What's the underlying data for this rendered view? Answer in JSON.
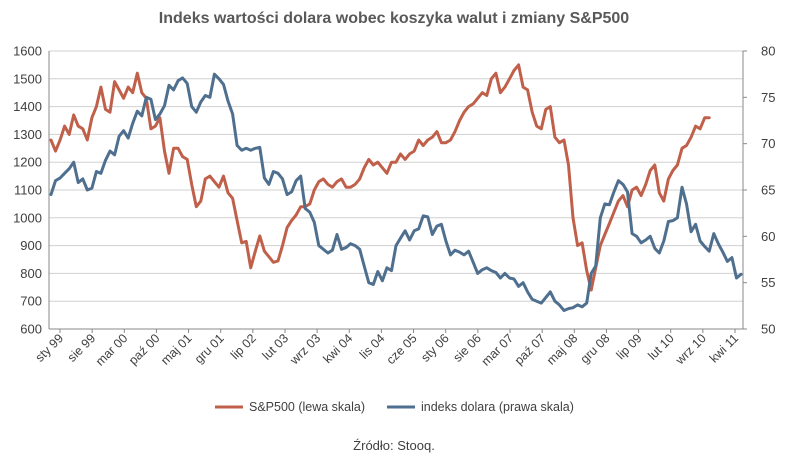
{
  "chart_data": {
    "type": "line",
    "title": "Indeks wartości dolara wobec koszyka walut i zmiany S&P500",
    "source": "Źródło: Stooq.",
    "x_tick_labels": [
      "sty 99",
      "sie 99",
      "mar 00",
      "paź 00",
      "maj 01",
      "gru 01",
      "lip 02",
      "lut 03",
      "wrz 03",
      "kwi 04",
      "lis 04",
      "cze 05",
      "sty 06",
      "sie 06",
      "mar 07",
      "paź 07",
      "maj 08",
      "gru 08",
      "lip 09",
      "lut 10",
      "wrz 10",
      "kwi 11"
    ],
    "y_left": {
      "ticks": [
        "600",
        "700",
        "800",
        "900",
        "1000",
        "1100",
        "1200",
        "1300",
        "1400",
        "1500",
        "1600"
      ],
      "range": [
        600,
        1600
      ]
    },
    "y_right": {
      "ticks": [
        "50",
        "55",
        "60",
        "65",
        "70",
        "75",
        "80"
      ],
      "range": [
        50,
        80
      ]
    },
    "grid": "horizontal",
    "legend_position": "bottom",
    "colors": {
      "sp500": "#c0604a",
      "dollar": "#4f6f8f",
      "grid": "#d0d0d0",
      "axis": "#888888"
    },
    "series": [
      {
        "name": "S&P500 (lewa skala)",
        "axis": "left",
        "color": "#c0604a",
        "points": [
          [
            0,
            1280
          ],
          [
            1,
            1240
          ],
          [
            2,
            1280
          ],
          [
            3,
            1330
          ],
          [
            4,
            1300
          ],
          [
            5,
            1370
          ],
          [
            6,
            1330
          ],
          [
            7,
            1320
          ],
          [
            8,
            1280
          ],
          [
            9,
            1360
          ],
          [
            10,
            1400
          ],
          [
            11,
            1470
          ],
          [
            12,
            1390
          ],
          [
            13,
            1380
          ],
          [
            14,
            1490
          ],
          [
            15,
            1460
          ],
          [
            16,
            1430
          ],
          [
            17,
            1470
          ],
          [
            18,
            1450
          ],
          [
            19,
            1520
          ],
          [
            20,
            1450
          ],
          [
            21,
            1430
          ],
          [
            22,
            1320
          ],
          [
            23,
            1330
          ],
          [
            24,
            1360
          ],
          [
            25,
            1240
          ],
          [
            26,
            1160
          ],
          [
            27,
            1250
          ],
          [
            28,
            1250
          ],
          [
            29,
            1220
          ],
          [
            30,
            1210
          ],
          [
            31,
            1120
          ],
          [
            32,
            1040
          ],
          [
            33,
            1060
          ],
          [
            34,
            1140
          ],
          [
            35,
            1150
          ],
          [
            36,
            1130
          ],
          [
            37,
            1110
          ],
          [
            38,
            1150
          ],
          [
            39,
            1090
          ],
          [
            40,
            1070
          ],
          [
            41,
            990
          ],
          [
            42,
            910
          ],
          [
            43,
            915
          ],
          [
            44,
            820
          ],
          [
            45,
            880
          ],
          [
            46,
            935
          ],
          [
            47,
            880
          ],
          [
            48,
            860
          ],
          [
            49,
            840
          ],
          [
            50,
            845
          ],
          [
            51,
            900
          ],
          [
            52,
            965
          ],
          [
            53,
            990
          ],
          [
            54,
            1010
          ],
          [
            55,
            1040
          ],
          [
            56,
            1040
          ],
          [
            57,
            1050
          ],
          [
            58,
            1100
          ],
          [
            59,
            1130
          ],
          [
            60,
            1140
          ],
          [
            61,
            1120
          ],
          [
            62,
            1110
          ],
          [
            63,
            1130
          ],
          [
            64,
            1140
          ],
          [
            65,
            1110
          ],
          [
            66,
            1110
          ],
          [
            67,
            1120
          ],
          [
            68,
            1140
          ],
          [
            69,
            1180
          ],
          [
            70,
            1210
          ],
          [
            71,
            1190
          ],
          [
            72,
            1200
          ],
          [
            73,
            1180
          ],
          [
            74,
            1160
          ],
          [
            75,
            1200
          ],
          [
            76,
            1200
          ],
          [
            77,
            1230
          ],
          [
            78,
            1210
          ],
          [
            79,
            1230
          ],
          [
            80,
            1240
          ],
          [
            81,
            1280
          ],
          [
            82,
            1260
          ],
          [
            83,
            1280
          ],
          [
            84,
            1290
          ],
          [
            85,
            1310
          ],
          [
            86,
            1270
          ],
          [
            87,
            1270
          ],
          [
            88,
            1280
          ],
          [
            89,
            1310
          ],
          [
            90,
            1350
          ],
          [
            91,
            1380
          ],
          [
            92,
            1400
          ],
          [
            93,
            1410
          ],
          [
            94,
            1430
          ],
          [
            95,
            1450
          ],
          [
            96,
            1440
          ],
          [
            97,
            1500
          ],
          [
            98,
            1520
          ],
          [
            99,
            1450
          ],
          [
            100,
            1470
          ],
          [
            101,
            1500
          ],
          [
            102,
            1530
          ],
          [
            103,
            1550
          ],
          [
            104,
            1470
          ],
          [
            105,
            1460
          ],
          [
            106,
            1380
          ],
          [
            107,
            1330
          ],
          [
            108,
            1320
          ],
          [
            109,
            1390
          ],
          [
            110,
            1400
          ],
          [
            111,
            1290
          ],
          [
            112,
            1270
          ],
          [
            113,
            1280
          ],
          [
            114,
            1190
          ],
          [
            115,
            1000
          ],
          [
            116,
            900
          ],
          [
            117,
            910
          ],
          [
            118,
            810
          ],
          [
            119,
            740
          ],
          [
            120,
            820
          ],
          [
            121,
            900
          ],
          [
            122,
            940
          ],
          [
            123,
            980
          ],
          [
            124,
            1020
          ],
          [
            125,
            1060
          ],
          [
            126,
            1080
          ],
          [
            127,
            1040
          ],
          [
            128,
            1100
          ],
          [
            129,
            1110
          ],
          [
            130,
            1080
          ],
          [
            131,
            1120
          ],
          [
            132,
            1170
          ],
          [
            133,
            1190
          ],
          [
            134,
            1090
          ],
          [
            135,
            1060
          ],
          [
            136,
            1140
          ],
          [
            137,
            1170
          ],
          [
            138,
            1190
          ],
          [
            139,
            1250
          ],
          [
            140,
            1260
          ],
          [
            141,
            1290
          ],
          [
            142,
            1330
          ],
          [
            143,
            1320
          ],
          [
            144,
            1360
          ],
          [
            145,
            1360
          ]
        ]
      },
      {
        "name": "indeks dolara (prawa skala)",
        "axis": "right",
        "color": "#4f6f8f",
        "points": [
          [
            0,
            64.5
          ],
          [
            1,
            66
          ],
          [
            2,
            66.3
          ],
          [
            3,
            66.8
          ],
          [
            4,
            67.3
          ],
          [
            5,
            68
          ],
          [
            6,
            65.8
          ],
          [
            7,
            66.2
          ],
          [
            8,
            65
          ],
          [
            9,
            65.2
          ],
          [
            10,
            67
          ],
          [
            11,
            66.8
          ],
          [
            12,
            68.2
          ],
          [
            13,
            69.2
          ],
          [
            14,
            68.8
          ],
          [
            15,
            70.8
          ],
          [
            16,
            71.4
          ],
          [
            17,
            70.6
          ],
          [
            18,
            72.2
          ],
          [
            19,
            73.5
          ],
          [
            20,
            73
          ],
          [
            21,
            75
          ],
          [
            22,
            74.8
          ],
          [
            23,
            72.6
          ],
          [
            24,
            73.2
          ],
          [
            25,
            74.1
          ],
          [
            26,
            76.3
          ],
          [
            27,
            75.8
          ],
          [
            28,
            76.8
          ],
          [
            29,
            77.1
          ],
          [
            30,
            76.5
          ],
          [
            31,
            74
          ],
          [
            32,
            73.4
          ],
          [
            33,
            74.5
          ],
          [
            34,
            75.2
          ],
          [
            35,
            75
          ],
          [
            36,
            77.5
          ],
          [
            37,
            77
          ],
          [
            38,
            76.4
          ],
          [
            39,
            74.6
          ],
          [
            40,
            73.2
          ],
          [
            41,
            69.8
          ],
          [
            42,
            69.3
          ],
          [
            43,
            69.5
          ],
          [
            44,
            69.3
          ],
          [
            45,
            69.5
          ],
          [
            46,
            69.6
          ],
          [
            47,
            66.3
          ],
          [
            48,
            65.6
          ],
          [
            49,
            67
          ],
          [
            50,
            66.8
          ],
          [
            51,
            66.2
          ],
          [
            52,
            64.5
          ],
          [
            53,
            64.8
          ],
          [
            54,
            66
          ],
          [
            55,
            66.5
          ],
          [
            56,
            63
          ],
          [
            57,
            62.6
          ],
          [
            58,
            61.5
          ],
          [
            59,
            59
          ],
          [
            60,
            58.6
          ],
          [
            61,
            58.2
          ],
          [
            62,
            58.5
          ],
          [
            63,
            60.2
          ],
          [
            64,
            58.6
          ],
          [
            65,
            58.8
          ],
          [
            66,
            59.2
          ],
          [
            67,
            59
          ],
          [
            68,
            58.6
          ],
          [
            69,
            56.8
          ],
          [
            70,
            55
          ],
          [
            71,
            54.8
          ],
          [
            72,
            56.2
          ],
          [
            73,
            55.2
          ],
          [
            74,
            56.6
          ],
          [
            75,
            56.3
          ],
          [
            76,
            59
          ],
          [
            77,
            59.8
          ],
          [
            78,
            60.6
          ],
          [
            79,
            59.6
          ],
          [
            80,
            60.6
          ],
          [
            81,
            60.8
          ],
          [
            82,
            62.2
          ],
          [
            83,
            62.1
          ],
          [
            84,
            60.2
          ],
          [
            85,
            61.1
          ],
          [
            86,
            61.3
          ],
          [
            87,
            59.5
          ],
          [
            88,
            58
          ],
          [
            89,
            58.5
          ],
          [
            90,
            58.3
          ],
          [
            91,
            58
          ],
          [
            92,
            58.4
          ],
          [
            93,
            57.2
          ],
          [
            94,
            56
          ],
          [
            95,
            56.4
          ],
          [
            96,
            56.6
          ],
          [
            97,
            56.3
          ],
          [
            98,
            56.1
          ],
          [
            99,
            55.5
          ],
          [
            100,
            56
          ],
          [
            101,
            55.5
          ],
          [
            102,
            55.4
          ],
          [
            103,
            54.6
          ],
          [
            104,
            55
          ],
          [
            105,
            54
          ],
          [
            106,
            53.2
          ],
          [
            107,
            53
          ],
          [
            108,
            52.8
          ],
          [
            109,
            53.4
          ],
          [
            110,
            54
          ],
          [
            111,
            53
          ],
          [
            112,
            52.6
          ],
          [
            113,
            52
          ],
          [
            114,
            52.2
          ],
          [
            115,
            52.3
          ],
          [
            116,
            52.6
          ],
          [
            117,
            52.4
          ],
          [
            118,
            52.8
          ],
          [
            119,
            56
          ],
          [
            120,
            56.8
          ],
          [
            121,
            62
          ],
          [
            122,
            63.5
          ],
          [
            123,
            63.4
          ],
          [
            124,
            64.8
          ],
          [
            125,
            66
          ],
          [
            126,
            65.6
          ],
          [
            127,
            64.8
          ],
          [
            128,
            60.3
          ],
          [
            129,
            60
          ],
          [
            130,
            59.3
          ],
          [
            131,
            59.6
          ],
          [
            132,
            60
          ],
          [
            133,
            58.7
          ],
          [
            134,
            58.2
          ],
          [
            135,
            59.5
          ],
          [
            136,
            61.6
          ],
          [
            137,
            61.7
          ],
          [
            138,
            62
          ],
          [
            139,
            65.3
          ],
          [
            140,
            63.5
          ],
          [
            141,
            60.5
          ],
          [
            142,
            61.3
          ],
          [
            143,
            59.5
          ],
          [
            144,
            58.9
          ],
          [
            145,
            58.4
          ],
          [
            146,
            60.3
          ],
          [
            147,
            59.2
          ],
          [
            148,
            58.3
          ],
          [
            149,
            57.3
          ],
          [
            150,
            57.7
          ],
          [
            151,
            55.5
          ],
          [
            152,
            55.9
          ]
        ]
      }
    ],
    "x_max_index": 152
  }
}
